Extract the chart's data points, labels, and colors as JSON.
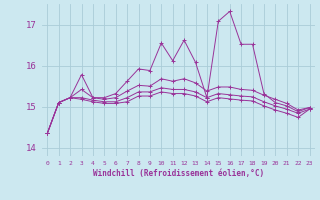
{
  "xlabel": "Windchill (Refroidissement éolien,°C)",
  "background_color": "#cce8f0",
  "grid_color": "#aaccd8",
  "line_color": "#993399",
  "x": [
    0,
    1,
    2,
    3,
    4,
    5,
    6,
    7,
    8,
    9,
    10,
    11,
    12,
    13,
    14,
    15,
    16,
    17,
    18,
    19,
    20,
    21,
    22,
    23
  ],
  "ylim": [
    13.8,
    17.5
  ],
  "yticks": [
    14,
    15,
    16,
    17
  ],
  "series": [
    [
      14.35,
      15.1,
      15.22,
      15.78,
      15.22,
      15.22,
      15.32,
      15.62,
      15.92,
      15.88,
      16.55,
      16.12,
      16.62,
      16.08,
      15.22,
      17.08,
      17.32,
      16.52,
      16.52,
      15.32,
      15.1,
      15.02,
      14.88,
      14.98
    ],
    [
      14.35,
      15.1,
      15.22,
      15.42,
      15.22,
      15.18,
      15.22,
      15.38,
      15.52,
      15.5,
      15.68,
      15.62,
      15.68,
      15.58,
      15.38,
      15.48,
      15.48,
      15.42,
      15.4,
      15.28,
      15.18,
      15.08,
      14.92,
      14.98
    ],
    [
      14.35,
      15.1,
      15.22,
      15.22,
      15.16,
      15.12,
      15.12,
      15.22,
      15.36,
      15.36,
      15.46,
      15.42,
      15.42,
      15.36,
      15.22,
      15.32,
      15.29,
      15.26,
      15.24,
      15.12,
      15.02,
      14.94,
      14.84,
      14.94
    ],
    [
      14.35,
      15.1,
      15.22,
      15.18,
      15.12,
      15.08,
      15.08,
      15.12,
      15.26,
      15.26,
      15.36,
      15.32,
      15.32,
      15.26,
      15.12,
      15.22,
      15.19,
      15.16,
      15.14,
      15.02,
      14.92,
      14.84,
      14.74,
      14.94
    ]
  ]
}
